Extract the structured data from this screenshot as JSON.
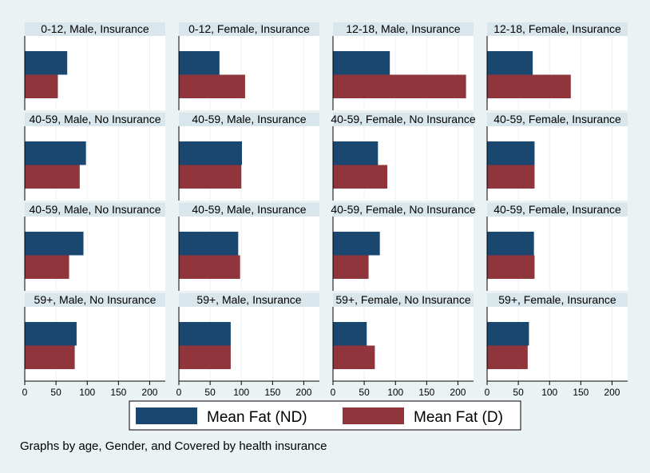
{
  "chart_data": {
    "type": "bar",
    "orientation": "horizontal",
    "xlim": [
      0,
      225
    ],
    "xticks": [
      0,
      50,
      100,
      150,
      200
    ],
    "grid": true,
    "legend_position": "bottom",
    "series": [
      {
        "name": "Mean Fat (ND)",
        "color": "#1a476f"
      },
      {
        "name": "Mean Fat (D)",
        "color": "#90353b"
      }
    ],
    "panels": [
      {
        "title": "0-12, Male, Insurance",
        "values": [
          68,
          53
        ]
      },
      {
        "title": "0-12, Female, Insurance",
        "values": [
          65,
          106
        ]
      },
      {
        "title": "12-18, Male, Insurance",
        "values": [
          91,
          213
        ]
      },
      {
        "title": "12-18, Female, Insurance",
        "values": [
          73,
          134
        ]
      },
      {
        "title": "40-59, Male, No Insurance",
        "values": [
          98,
          88
        ]
      },
      {
        "title": "40-59, Male, Insurance",
        "values": [
          101,
          100
        ]
      },
      {
        "title": "40-59, Female, No Insurance",
        "values": [
          72,
          87
        ]
      },
      {
        "title": "40-59, Female, Insurance",
        "values": [
          76,
          76
        ]
      },
      {
        "title": "40-59, Male, No Insurance",
        "values": [
          94,
          71
        ]
      },
      {
        "title": "40-59, Male, Insurance",
        "values": [
          95,
          98
        ]
      },
      {
        "title": "40-59, Female, No Insurance",
        "values": [
          75,
          57
        ]
      },
      {
        "title": "40-59, Female, Insurance",
        "values": [
          75,
          76
        ]
      },
      {
        "title": "59+, Male, No Insurance",
        "values": [
          83,
          80
        ]
      },
      {
        "title": "59+, Male, Insurance",
        "values": [
          83,
          83
        ]
      },
      {
        "title": "59+, Female, No Insurance",
        "values": [
          54,
          67
        ]
      },
      {
        "title": "59+, Female, Insurance",
        "values": [
          67,
          65
        ]
      }
    ],
    "note": "Graphs by age, Gender, and Covered by health insurance"
  },
  "colors": {
    "background": "#eaf2f3",
    "panel_background": "#ffffff",
    "strip_background": "#d9e6eb",
    "grid": "#eaf2f3",
    "axis": "#000000"
  }
}
